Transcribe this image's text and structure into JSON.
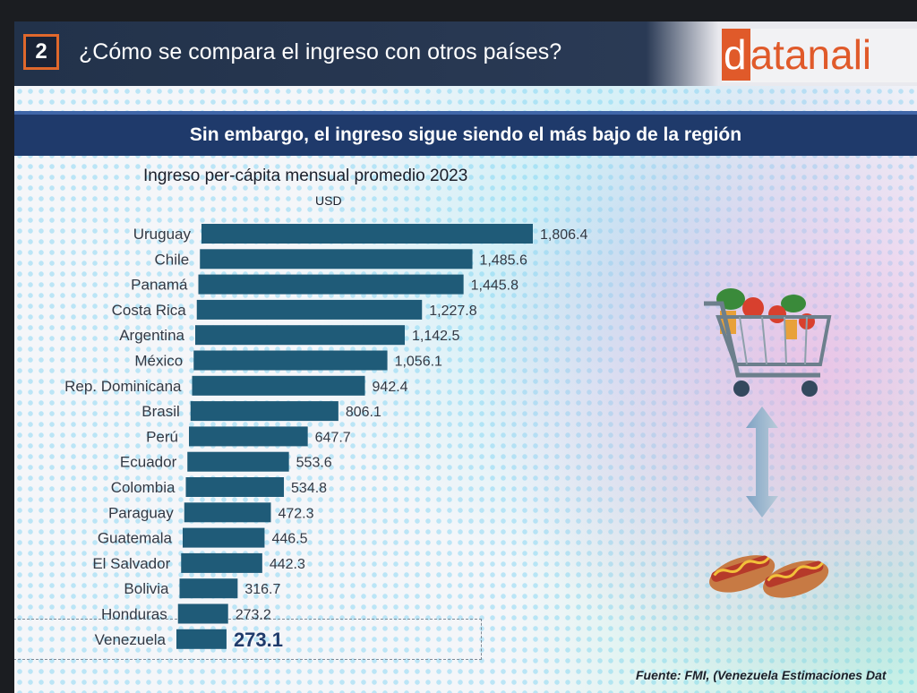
{
  "header": {
    "slide_number": "2",
    "title": "¿Cómo se compara el ingreso con otros países?",
    "logo_first_letter": "d",
    "logo_rest": "atanali"
  },
  "subtitle": "Sin embargo, el ingreso sigue siendo el más bajo de la región",
  "source": "Fuente: FMI, (Venezuela Estimaciones Dat",
  "icons": [
    "shopping-cart-icon",
    "double-arrow-icon",
    "hot-dog-icon"
  ],
  "colors": {
    "bar": "#1f5b78",
    "highlight_text": "#1f3a6b",
    "brand": "#e05a2a"
  },
  "chart_data": {
    "type": "bar",
    "orientation": "horizontal",
    "title": "Ingreso per-cápita mensual promedio 2023",
    "unit": "USD",
    "categories": [
      "Uruguay",
      "Chile",
      "Panamá",
      "Costa Rica",
      "Argentina",
      "México",
      "Rep. Dominicana",
      "Brasil",
      "Perú",
      "Ecuador",
      "Colombia",
      "Paraguay",
      "Guatemala",
      "El Salvador",
      "Bolivia",
      "Honduras",
      "Venezuela"
    ],
    "values": [
      1806.4,
      1485.6,
      1445.8,
      1227.8,
      1142.5,
      1056.1,
      942.4,
      806.1,
      647.7,
      553.6,
      534.8,
      472.3,
      446.5,
      442.3,
      316.7,
      273.2,
      273.1
    ],
    "value_labels": [
      "1,806.4",
      "1,485.6",
      "1,445.8",
      "1,227.8",
      "1,142.5",
      "1,056.1",
      "942.4",
      "806.1",
      "647.7",
      "553.6",
      "534.8",
      "472.3",
      "446.5",
      "442.3",
      "316.7",
      "273.2",
      "273.1"
    ],
    "highlight": "Venezuela",
    "grid": false
  }
}
